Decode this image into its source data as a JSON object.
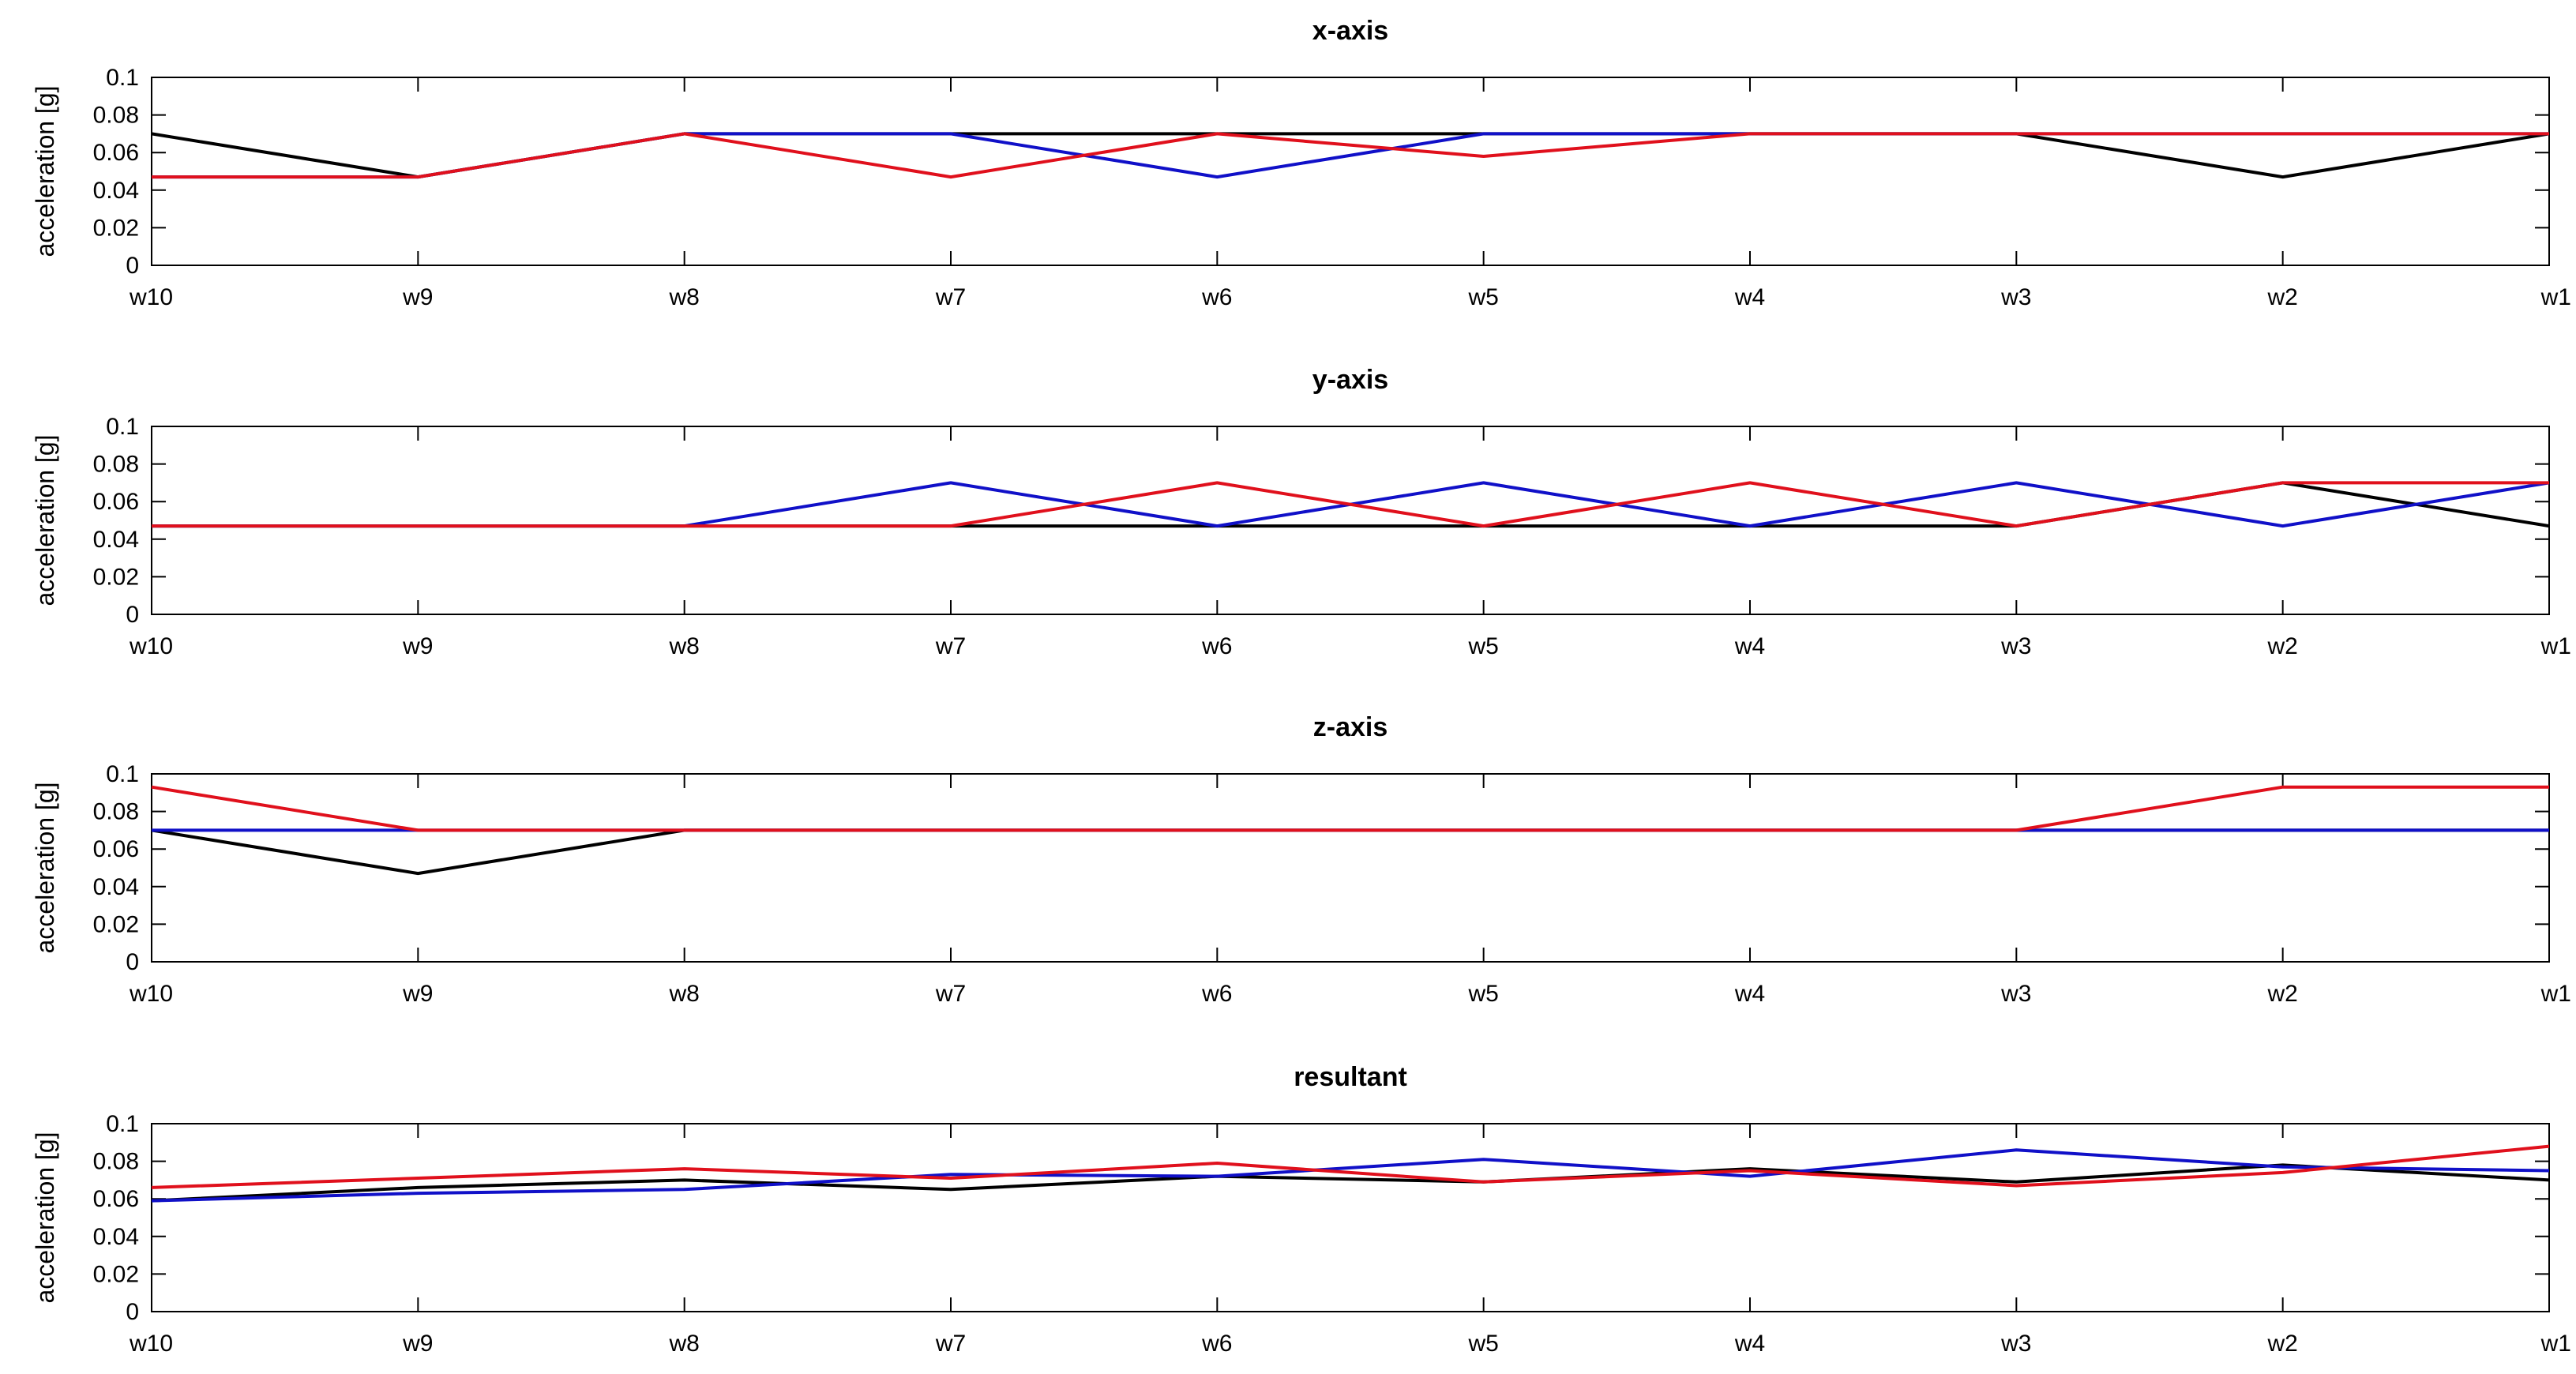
{
  "figure": {
    "colors": {
      "black": "#000000",
      "blue": "#1010c8",
      "red": "#e0101c"
    }
  },
  "chart_data": [
    {
      "type": "line",
      "title": "x-axis",
      "ylabel": "acceleration [g]",
      "xlabel": "",
      "categories": [
        "w10",
        "w9",
        "w8",
        "w7",
        "w6",
        "w5",
        "w4",
        "w3",
        "w2",
        "w1"
      ],
      "yticks": [
        "0",
        "0.02",
        "0.04",
        "0.06",
        "0.08",
        "0.1"
      ],
      "ylim": [
        0,
        0.1
      ],
      "grid": false,
      "series": [
        {
          "color": "#000000",
          "values": [
            0.07,
            0.047,
            0.07,
            0.07,
            0.07,
            0.07,
            0.07,
            0.07,
            0.047,
            0.07
          ]
        },
        {
          "color": "#1010c8",
          "values": [
            0.047,
            0.047,
            0.07,
            0.07,
            0.047,
            0.07,
            0.07,
            0.07,
            0.07,
            0.07
          ]
        },
        {
          "color": "#e0101c",
          "values": [
            0.047,
            0.047,
            0.07,
            0.047,
            0.07,
            0.058,
            0.07,
            0.07,
            0.07,
            0.07
          ]
        }
      ]
    },
    {
      "type": "line",
      "title": "y-axis",
      "ylabel": "acceleration [g]",
      "xlabel": "",
      "categories": [
        "w10",
        "w9",
        "w8",
        "w7",
        "w6",
        "w5",
        "w4",
        "w3",
        "w2",
        "w1"
      ],
      "yticks": [
        "0",
        "0.02",
        "0.04",
        "0.06",
        "0.08",
        "0.1"
      ],
      "ylim": [
        0,
        0.1
      ],
      "grid": false,
      "series": [
        {
          "color": "#000000",
          "values": [
            0.047,
            0.047,
            0.047,
            0.047,
            0.047,
            0.047,
            0.047,
            0.047,
            0.07,
            0.047
          ]
        },
        {
          "color": "#1010c8",
          "values": [
            0.047,
            0.047,
            0.047,
            0.07,
            0.047,
            0.07,
            0.047,
            0.07,
            0.047,
            0.07
          ]
        },
        {
          "color": "#e0101c",
          "values": [
            0.047,
            0.047,
            0.047,
            0.047,
            0.07,
            0.047,
            0.07,
            0.047,
            0.07,
            0.07
          ]
        }
      ]
    },
    {
      "type": "line",
      "title": "z-axis",
      "ylabel": "acceleration [g]",
      "xlabel": "",
      "categories": [
        "w10",
        "w9",
        "w8",
        "w7",
        "w6",
        "w5",
        "w4",
        "w3",
        "w2",
        "w1"
      ],
      "yticks": [
        "0",
        "0.02",
        "0.04",
        "0.06",
        "0.08",
        "0.1"
      ],
      "ylim": [
        0,
        0.1
      ],
      "grid": false,
      "series": [
        {
          "color": "#000000",
          "values": [
            0.07,
            0.047,
            0.07,
            0.07,
            0.07,
            0.07,
            0.07,
            0.07,
            0.07,
            0.07
          ]
        },
        {
          "color": "#1010c8",
          "values": [
            0.07,
            0.07,
            0.07,
            0.07,
            0.07,
            0.07,
            0.07,
            0.07,
            0.07,
            0.07
          ]
        },
        {
          "color": "#e0101c",
          "values": [
            0.093,
            0.07,
            0.07,
            0.07,
            0.07,
            0.07,
            0.07,
            0.07,
            0.093,
            0.093
          ]
        }
      ]
    },
    {
      "type": "line",
      "title": "resultant",
      "ylabel": "acceleration [g]",
      "xlabel": "",
      "categories": [
        "w10",
        "w9",
        "w8",
        "w7",
        "w6",
        "w5",
        "w4",
        "w3",
        "w2",
        "w1"
      ],
      "yticks": [
        "0",
        "0.02",
        "0.04",
        "0.06",
        "0.08",
        "0.1"
      ],
      "ylim": [
        0,
        0.1
      ],
      "grid": false,
      "series": [
        {
          "color": "#000000",
          "values": [
            0.059,
            0.066,
            0.07,
            0.065,
            0.072,
            0.069,
            0.076,
            0.069,
            0.078,
            0.07
          ]
        },
        {
          "color": "#1010c8",
          "values": [
            0.059,
            0.063,
            0.065,
            0.073,
            0.072,
            0.081,
            0.072,
            0.086,
            0.077,
            0.075
          ]
        },
        {
          "color": "#e0101c",
          "values": [
            0.066,
            0.071,
            0.076,
            0.071,
            0.079,
            0.069,
            0.075,
            0.067,
            0.074,
            0.088
          ]
        }
      ]
    }
  ]
}
